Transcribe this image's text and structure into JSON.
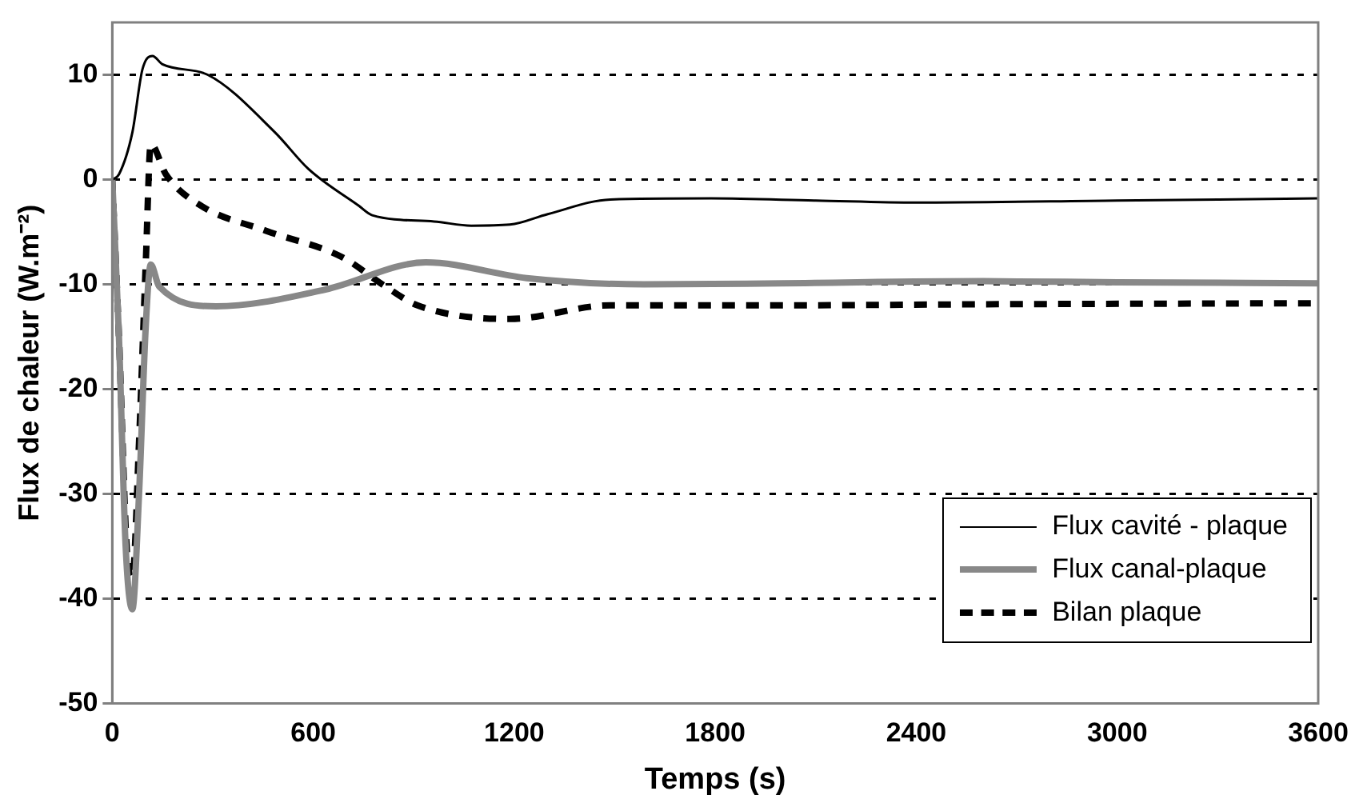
{
  "chart_data": {
    "type": "line",
    "xlabel": "Temps (s)",
    "ylabel": "Flux de chaleur (W.m⁻²)",
    "xlim": [
      0,
      3600
    ],
    "xticks": [
      0,
      600,
      1200,
      1800,
      2400,
      3000,
      3600
    ],
    "ylim": [
      -50,
      15
    ],
    "yticks": [
      -50,
      -40,
      -30,
      -20,
      -10,
      0,
      10
    ],
    "grid": "y",
    "legend": "bottom right",
    "marker": "none",
    "series": [
      {
        "name": "Flux cavité - plaque",
        "color": "#000000",
        "line_style": "solid",
        "x": [
          0,
          20,
          60,
          90,
          120,
          150,
          285,
          486,
          586,
          736,
          776,
          961,
          1072,
          1187,
          1300,
          1487,
          1788,
          2100,
          2400,
          3000,
          3600
        ],
        "values": [
          0,
          0.5,
          4.5,
          10.5,
          11.8,
          11,
          10,
          4.5,
          1,
          -2.5,
          -3.4,
          -4,
          -4.4,
          -4.3,
          -3.3,
          -1.9,
          -1.8,
          -2,
          -2.2,
          -2,
          -1.8
        ]
      },
      {
        "name": "Flux canal-plaque",
        "color": "#888888",
        "line_style": "solid",
        "x": [
          0,
          20,
          40,
          60,
          80,
          100,
          115,
          140,
          310,
          636,
          936,
          1237,
          1587,
          2000,
          2600,
          3000,
          3600
        ],
        "values": [
          0,
          -15,
          -35,
          -41,
          -30,
          -14,
          -8.1,
          -10.2,
          -12.1,
          -10.5,
          -7.9,
          -9.4,
          -10,
          -9.9,
          -9.7,
          -9.8,
          -9.9
        ]
      },
      {
        "name": "Bilan plaque",
        "color": "#000000",
        "line_style": "dashed",
        "x": [
          0,
          20,
          45,
          60,
          80,
          100,
          115,
          160,
          260,
          460,
          686,
          811,
          911,
          1187,
          1487,
          1988,
          2600,
          3600
        ],
        "values": [
          0,
          -15,
          -36,
          -38,
          -25,
          -8,
          3.4,
          0.5,
          -2.4,
          -4.9,
          -7.4,
          -10.1,
          -12,
          -13.3,
          -12,
          -12,
          -11.9,
          -11.8
        ]
      }
    ]
  }
}
